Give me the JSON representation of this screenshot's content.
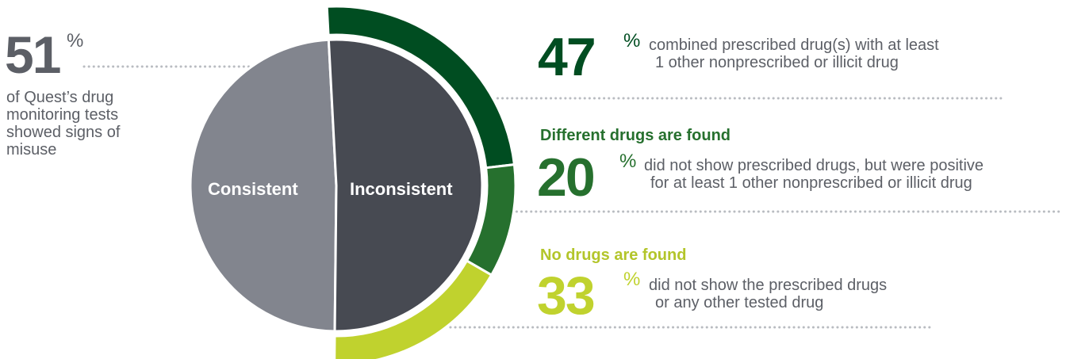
{
  "chart_data": {
    "type": "pie",
    "title": "",
    "inner_pie": {
      "slices": [
        {
          "label": "Consistent",
          "value": 49,
          "color": "#82858e"
        },
        {
          "label": "Inconsistent",
          "value": 51,
          "color": "#474a52"
        }
      ]
    },
    "outer_ring": {
      "parent": "Inconsistent",
      "slices": [
        {
          "value": 47,
          "color": "#004d21"
        },
        {
          "value": 20,
          "color": "#26702e"
        },
        {
          "value": 33,
          "color": "#c0d22e"
        }
      ]
    }
  },
  "left_stat": {
    "value": "51",
    "unit": "%",
    "text_lines": [
      "of Quest’s drug",
      "monitoring tests",
      "showed signs of",
      "misuse"
    ],
    "color": "#5c5f66"
  },
  "stats": [
    {
      "heading": "",
      "value": "47",
      "unit": "%",
      "text_lines": [
        "combined prescribed drug(s) with at least",
        "1 other nonprescribed or illicit drug"
      ],
      "color": "#004d21"
    },
    {
      "heading": "Different drugs are found",
      "value": "20",
      "unit": "%",
      "text_lines": [
        "did not show prescribed drugs, but were positive",
        "for at least 1 other nonprescribed or illicit drug"
      ],
      "color": "#26702e"
    },
    {
      "heading": "No drugs are found",
      "value": "33",
      "unit": "%",
      "text_lines": [
        "did not show the prescribed drugs",
        "or any other tested drug"
      ],
      "color": "#b3c52a"
    }
  ],
  "colors": {
    "dots": "#b9bcc1",
    "text": "#5c5f66",
    "label": "#ffffff"
  }
}
